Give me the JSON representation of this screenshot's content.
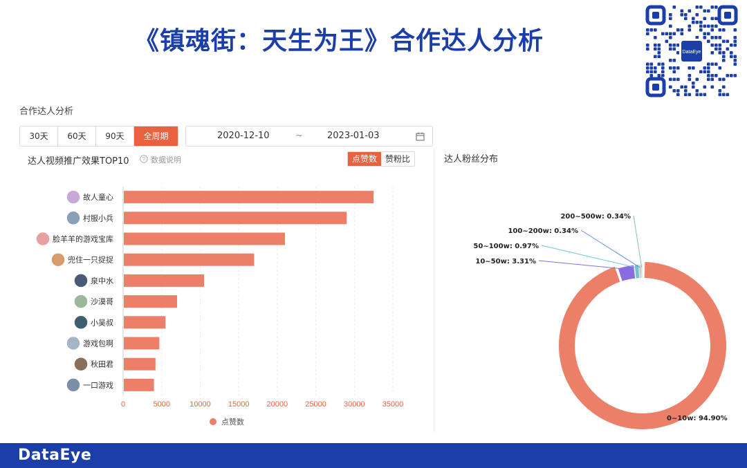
{
  "slide_title": "《镇魂街：天生为王》合作达人分析",
  "qr_brand": "DataEye",
  "section_title": "合作达人分析",
  "range_tabs": [
    {
      "label": "30天"
    },
    {
      "label": "60天"
    },
    {
      "label": "90天"
    },
    {
      "label": "全周期"
    }
  ],
  "active_range": "全周期",
  "date_range": {
    "start": "2020-12-10",
    "separator": "~",
    "end": "2023-01-03"
  },
  "left_panel": {
    "title": "达人视频推广效果TOP10",
    "help_text": "数据说明",
    "toggle": [
      "点赞数",
      "赞粉比"
    ],
    "active_toggle": "点赞数"
  },
  "right_panel": {
    "title": "达人粉丝分布"
  },
  "colors": {
    "accent": "#e8623f",
    "bar": "#ec7f67",
    "brand": "#1b3ea8",
    "purple": "#8b6ce0",
    "teal": "#6ec6d4",
    "blue": "#5b8def",
    "green": "#7cc8a0"
  },
  "chart_data": [
    {
      "type": "bar",
      "orientation": "horizontal",
      "title": "达人视频推广效果TOP10",
      "categories": [
        "故人童心",
        "村服小兵",
        "脸羊羊的游戏宝库",
        "兜住一只捉捉",
        "泉中水",
        "沙漠哥",
        "小吴叔",
        "游戏包啊",
        "秋田君",
        "一口游戏"
      ],
      "series": [
        {
          "name": "点赞数",
          "values": [
            32500,
            29000,
            21000,
            17000,
            10500,
            7000,
            5500,
            4700,
            4200,
            4000
          ]
        }
      ],
      "xlim": [
        0,
        35000
      ],
      "xticks": [
        0,
        5000,
        10000,
        15000,
        20000,
        25000,
        30000,
        35000
      ],
      "grid": true,
      "legend": "bottom"
    },
    {
      "type": "pie",
      "variant": "donut",
      "title": "达人粉丝分布",
      "slices": [
        {
          "label": "0~10w",
          "value": 94.9,
          "display": "0~10w: 94.90%",
          "color": "#ec7f67"
        },
        {
          "label": "10~50w",
          "value": 3.31,
          "display": "10~50w: 3.31%",
          "color": "#8b6ce0"
        },
        {
          "label": "50~100w",
          "value": 0.97,
          "display": "50~100w: 0.97%",
          "color": "#6ec6d4"
        },
        {
          "label": "100~200w",
          "value": 0.34,
          "display": "100~200w: 0.34%",
          "color": "#5b8def"
        },
        {
          "label": "200~500w",
          "value": 0.34,
          "display": "200~500w: 0.34%",
          "color": "#7cc8a0"
        }
      ]
    }
  ],
  "footer_logo": "DataEye"
}
